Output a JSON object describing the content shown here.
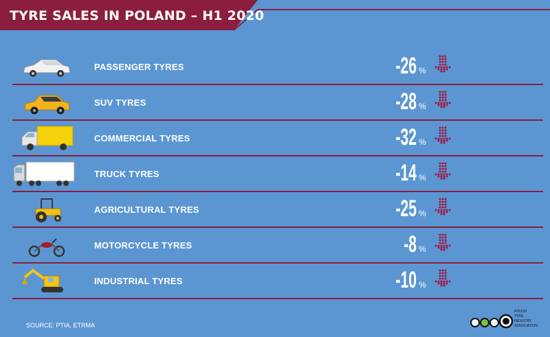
{
  "title": "TYRE SALES IN POLAND – H1 2020",
  "unit": "%",
  "source": "SOURCE: PTIA, ETRMA",
  "logo": {
    "lines": [
      "POLISH",
      "TYRE",
      "INDUSTRY",
      "ASSOCIATION"
    ]
  },
  "colors": {
    "background": "#5b96d3",
    "accent": "#8a1e3c",
    "text": "#ffffff"
  },
  "chart_data": {
    "type": "table",
    "title": "TYRE SALES IN POLAND – H1 2020",
    "categories": [
      "PASSENGER TYRES",
      "SUV TYRES",
      "COMMERCIAL TYRES",
      "TRUCK TYRES",
      "AGRICULTURAL TYRES",
      "MOTORCYCLE TYRES",
      "INDUSTRIAL TYRES"
    ],
    "values": [
      -26,
      -28,
      -32,
      -14,
      -25,
      -8,
      -10
    ],
    "value_labels": [
      "-26",
      "-28",
      "-32",
      "-14",
      "-25",
      "-8",
      "-10"
    ],
    "unit": "%",
    "icons": [
      "car-icon",
      "suv-icon",
      "van-icon",
      "truck-icon",
      "tractor-icon",
      "motorcycle-icon",
      "excavator-icon"
    ],
    "trend": "down-arrow-icon"
  }
}
